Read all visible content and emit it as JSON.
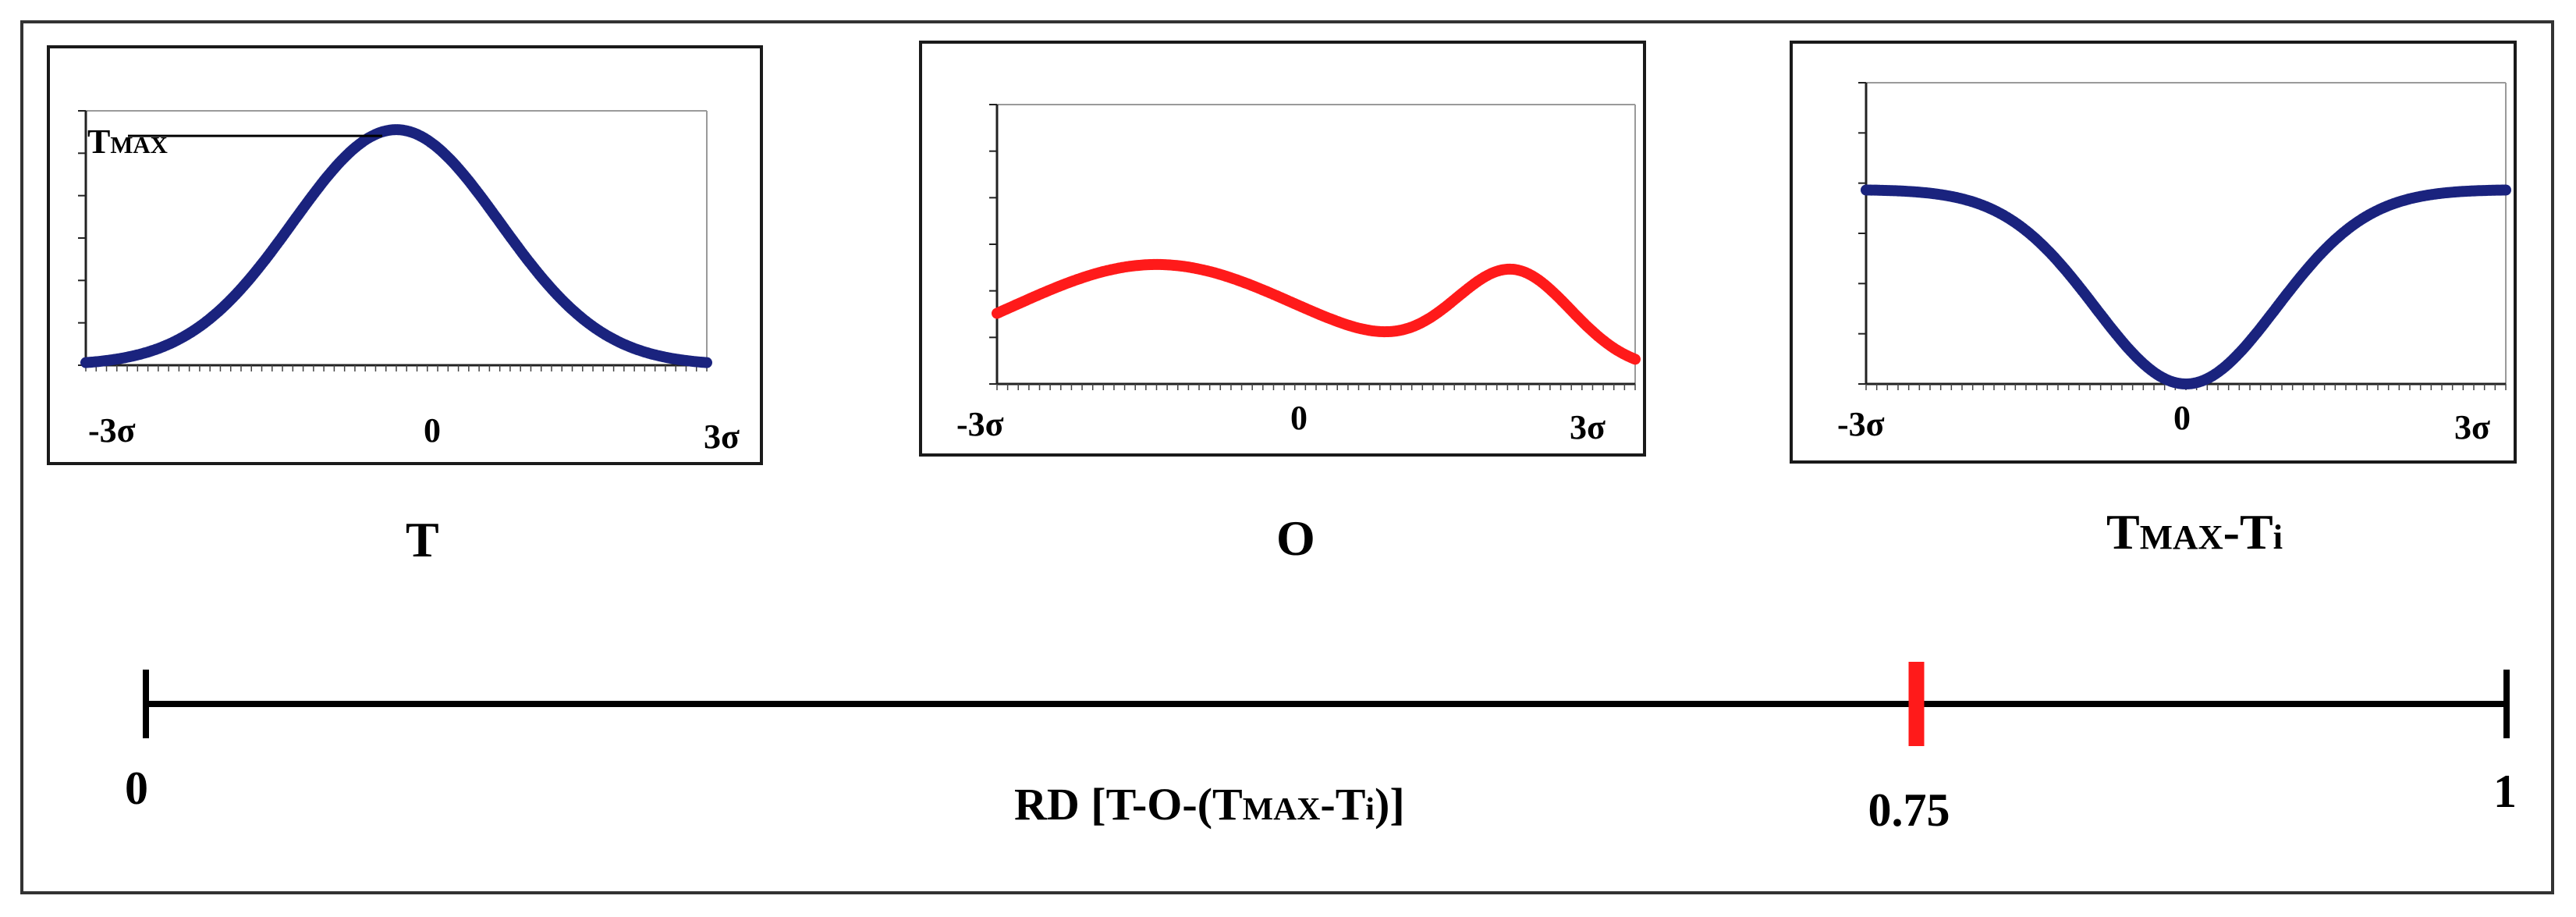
{
  "chart_data": [
    {
      "type": "line",
      "name_label": "T",
      "color": "#1a237e",
      "x_ticks": [
        "-3σ",
        "0",
        "3σ"
      ],
      "annotation": "T",
      "annotation_sub": "MAX",
      "shape": "gaussian-peak"
    },
    {
      "type": "line",
      "name_label": "O",
      "color": "#ff1a1a",
      "x_ticks": [
        "-3σ",
        "0",
        "3σ"
      ],
      "shape": "bimodal"
    },
    {
      "type": "line",
      "name_label_main": "T",
      "name_label_sub": "MAX",
      "name_label_rest": "-T",
      "name_label_sub2": "i",
      "color": "#1a237e",
      "x_ticks": [
        "-3σ",
        "0",
        "3σ"
      ],
      "shape": "inverted-gaussian"
    }
  ],
  "scale": {
    "min_label": "0",
    "max_label": "1",
    "marker_value": 0.75,
    "marker_label": "0.75",
    "marker_color": "#ff1a1a",
    "title_prefix": "RD [T-O-(T",
    "title_sub1": "MAX",
    "title_mid": "-T",
    "title_sub2": "i",
    "title_suffix": ")]"
  }
}
